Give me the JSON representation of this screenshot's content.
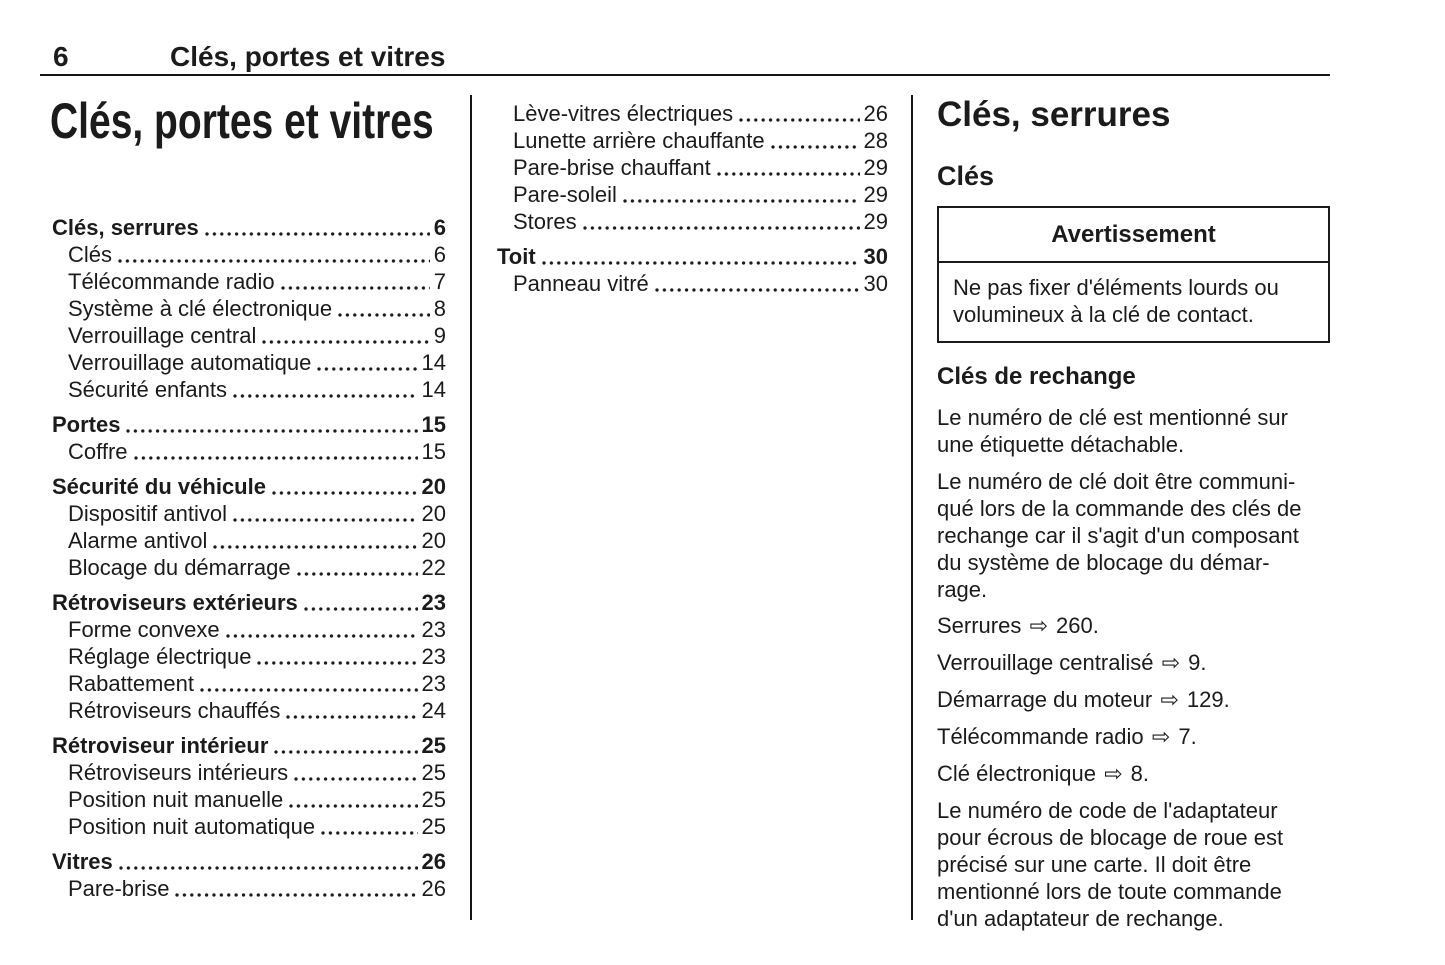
{
  "header": {
    "page_number": "6",
    "title": "Clés, portes et vitres"
  },
  "icons": {
    "xref_arrow": "⇨"
  },
  "colors": {
    "text": "#1b1b1b",
    "background": "#ffffff",
    "rule": "#151515"
  },
  "left_column": {
    "title": "Clés, portes et vitres",
    "toc": [
      {
        "label": "Clés, serrures",
        "page": "6"
      },
      {
        "label": "Clés",
        "page": "6"
      },
      {
        "label": "Télécommande radio",
        "page": "7"
      },
      {
        "label": "Système à clé électronique",
        "page": "8"
      },
      {
        "label": "Verrouillage central",
        "page": "9"
      },
      {
        "label": "Verrouillage automatique",
        "page": "14"
      },
      {
        "label": "Sécurité enfants",
        "page": "14"
      },
      {
        "label": "Portes",
        "page": "15"
      },
      {
        "label": "Coffre",
        "page": "15"
      },
      {
        "label": "Sécurité du véhicule",
        "page": "20"
      },
      {
        "label": "Dispositif antivol",
        "page": "20"
      },
      {
        "label": "Alarme antivol",
        "page": "20"
      },
      {
        "label": "Blocage du démarrage",
        "page": "22"
      },
      {
        "label": "Rétroviseurs extérieurs",
        "page": "23"
      },
      {
        "label": "Forme convexe",
        "page": "23"
      },
      {
        "label": "Réglage électrique",
        "page": "23"
      },
      {
        "label": "Rabattement",
        "page": "23"
      },
      {
        "label": "Rétroviseurs chauffés",
        "page": "24"
      },
      {
        "label": "Rétroviseur intérieur",
        "page": "25"
      },
      {
        "label": "Rétroviseurs intérieurs",
        "page": "25"
      },
      {
        "label": "Position nuit manuelle",
        "page": "25"
      },
      {
        "label": "Position nuit automatique",
        "page": "25"
      },
      {
        "label": "Vitres",
        "page": "26"
      },
      {
        "label": "Pare-brise",
        "page": "26"
      }
    ]
  },
  "middle_column": {
    "toc": [
      {
        "label": "Lève-vitres électriques",
        "page": "26"
      },
      {
        "label": "Lunette arrière chauffante",
        "page": "28"
      },
      {
        "label": "Pare-brise chauffant",
        "page": "29"
      },
      {
        "label": "Pare-soleil",
        "page": "29"
      },
      {
        "label": "Stores",
        "page": "29"
      },
      {
        "label": "Toit",
        "page": "30"
      },
      {
        "label": "Panneau vitré",
        "page": "30"
      }
    ]
  },
  "right_column": {
    "section_title": "Clés, serrures",
    "subsection_title": "Clés",
    "warning": {
      "caption": "Avertissement",
      "lines": [
        "Ne pas fixer d'éléments lourds ou",
        "volumineux à la clé de contact."
      ]
    },
    "subheading": "Clés de rechange",
    "para1_lines": [
      "Le numéro de clé est mentionné sur",
      "une étiquette détachable."
    ],
    "para2_lines": [
      "Le numéro de clé doit être communi-",
      "qué lors de la commande des clés de",
      "rechange car il s'agit d'un composant",
      "du système de blocage du démar-",
      "rage."
    ],
    "xrefs": [
      {
        "label": "Serrures",
        "ref": "260."
      },
      {
        "label": "Verrouillage centralisé",
        "ref": "9."
      },
      {
        "label": "Démarrage du moteur",
        "ref": "129."
      },
      {
        "label": "Télécommande radio",
        "ref": "7."
      },
      {
        "label": "Clé électronique",
        "ref": "8."
      }
    ],
    "para3_lines": [
      "Le numéro de code de l'adaptateur",
      "pour écrous de blocage de roue est",
      "précisé sur une carte. Il doit être",
      "mentionné lors de toute commande",
      "d'un adaptateur de rechange."
    ]
  }
}
